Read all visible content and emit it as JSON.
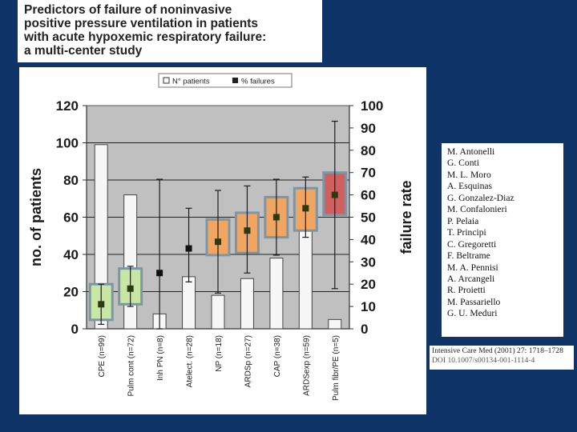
{
  "slide": {
    "title_lines": [
      "Predictors of failure of noninvasive",
      "positive pressure ventilation in patients",
      "with acute hypoxemic respiratory failure:",
      "a multi-center study"
    ],
    "authors": [
      "M. Antonelli",
      "G. Conti",
      "M. L. Moro",
      "A. Esquinas",
      "G. Gonzalez-Diaz",
      "M. Confalonieri",
      "P. Pelaia",
      "T. Principi",
      "C. Gregoretti",
      "F. Beltrame",
      "M. A. Pennisi",
      "A. Arcangeli",
      "R. Proietti",
      "M. Passariello",
      "G. U. Meduri"
    ],
    "citation": {
      "line1": "Intensive Care Med (2001) 27: 1718–1728",
      "line2": "DOI 10.1007/s00134-001-1114-4"
    }
  },
  "chart_data": {
    "type": "bar",
    "categories": [
      "CPE (n=99)",
      "Pulm cont (n=72)",
      "Inh PN (n=8)",
      "Atelect. (n=28)",
      "NP (n=18)",
      "ARDSp (n=27)",
      "CAP (n=38)",
      "ARDSexp (n=59)",
      "Pulm fibr/PE (n=5)"
    ],
    "legend": [
      "N° patients",
      "% failures"
    ],
    "ylabel": "no. of patients",
    "ylabel_right": "failure rate",
    "ylim": [
      0,
      120
    ],
    "ylim_right": [
      0,
      100
    ],
    "yticks": [
      "0",
      "20",
      "40",
      "60",
      "80",
      "100",
      "120"
    ],
    "yticks_right": [
      "0",
      "10",
      "20",
      "30",
      "40",
      "50",
      "60",
      "70",
      "80",
      "90",
      "100"
    ],
    "series": [
      {
        "name": "N° patients",
        "axis": "left",
        "values": [
          99,
          72,
          8,
          28,
          18,
          27,
          38,
          59,
          5
        ]
      },
      {
        "name": "% failures",
        "axis": "right",
        "values": [
          11,
          18,
          25,
          36,
          39,
          44,
          50,
          54,
          60
        ],
        "ci_low": [
          2,
          10,
          0,
          21,
          16,
          25,
          33,
          41,
          18
        ],
        "ci_high": [
          20,
          28,
          67,
          54,
          62,
          64,
          67,
          68,
          93
        ]
      }
    ],
    "highlight_boxes": [
      {
        "category": "CPE (n=99)",
        "color": "#c8e6a4",
        "low": 4,
        "high": 20
      },
      {
        "category": "Pulm cont (n=72)",
        "color": "#c8e6a4",
        "low": 11,
        "high": 27
      },
      {
        "category": "NP (n=18)",
        "color": "#f0a560",
        "low": 33,
        "high": 49
      },
      {
        "category": "ARDSp (n=27)",
        "color": "#f0a560",
        "low": 34,
        "high": 52
      },
      {
        "category": "CAP (n=38)",
        "color": "#f0a560",
        "low": 41,
        "high": 59
      },
      {
        "category": "ARDSexp (n=59)",
        "color": "#f0a560",
        "low": 44,
        "high": 63
      },
      {
        "category": "Pulm fibr/PE (n=5)",
        "color": "#d06060",
        "low": 51,
        "high": 70
      }
    ],
    "colors": {
      "plot_bg": "#c0c0c0",
      "bar_fill": "#f7f7f7",
      "marker": "#2b3a10",
      "box_border": "#7c96a6"
    }
  }
}
